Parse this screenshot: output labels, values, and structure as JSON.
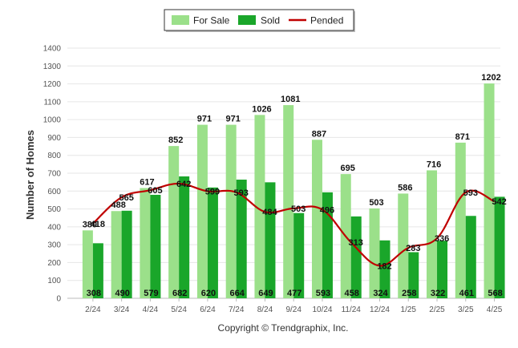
{
  "chart_data": {
    "type": "bar",
    "categories": [
      "2/24",
      "3/24",
      "4/24",
      "5/24",
      "6/24",
      "7/24",
      "8/24",
      "9/24",
      "10/24",
      "11/24",
      "12/24",
      "1/25",
      "2/25",
      "3/25",
      "4/25"
    ],
    "series": [
      {
        "name": "For Sale",
        "kind": "bar",
        "color": "#9be08a",
        "values": [
          380,
          488,
          617,
          852,
          971,
          971,
          1026,
          1081,
          887,
          695,
          503,
          586,
          716,
          871,
          1202
        ]
      },
      {
        "name": "Sold",
        "kind": "bar",
        "color": "#1aa62a",
        "values": [
          308,
          490,
          579,
          682,
          620,
          664,
          649,
          477,
          593,
          458,
          324,
          258,
          322,
          461,
          568
        ]
      },
      {
        "name": "Pended",
        "kind": "line",
        "color": "#c00000",
        "values": [
          418,
          565,
          605,
          642,
          599,
          593,
          484,
          503,
          496,
          313,
          182,
          283,
          336,
          593,
          542
        ]
      }
    ],
    "ylabel": "Number of Homes",
    "xlabel": "",
    "ylim": [
      0,
      1400
    ],
    "yticks": [
      0,
      100,
      200,
      300,
      400,
      500,
      600,
      700,
      800,
      900,
      1000,
      1100,
      1200,
      1300,
      1400
    ],
    "grid": true,
    "legend_position": "top-center"
  },
  "credit": "Copyright © Trendgraphix, Inc."
}
